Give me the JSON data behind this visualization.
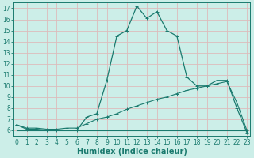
{
  "xlabel": "Humidex (Indice chaleur)",
  "background_color": "#cceee8",
  "grid_color": "#ddbbbb",
  "line_color": "#1a7a6e",
  "x_main": [
    0,
    1,
    2,
    3,
    4,
    5,
    6,
    7,
    8,
    9,
    10,
    11,
    12,
    13,
    14,
    15,
    16,
    17,
    18,
    19,
    20,
    21,
    22,
    23
  ],
  "y_main": [
    6.5,
    6.1,
    6.1,
    6.0,
    6.0,
    6.0,
    6.0,
    7.2,
    7.5,
    10.5,
    14.5,
    15.0,
    17.2,
    16.1,
    16.7,
    15.0,
    14.5,
    10.8,
    10.0,
    10.0,
    10.5,
    10.5,
    8.0,
    5.8
  ],
  "x_line2": [
    0,
    1,
    2,
    3,
    4,
    5,
    6,
    7,
    8,
    9,
    10,
    11,
    12,
    13,
    14,
    15,
    16,
    17,
    18,
    19,
    20,
    21,
    22,
    23
  ],
  "y_line2": [
    6.5,
    6.2,
    6.2,
    6.1,
    6.1,
    6.2,
    6.2,
    6.6,
    7.0,
    7.2,
    7.5,
    7.9,
    8.2,
    8.5,
    8.8,
    9.0,
    9.3,
    9.6,
    9.8,
    10.0,
    10.2,
    10.4,
    8.5,
    6.0
  ],
  "x_flat": [
    0,
    6,
    7,
    22,
    23
  ],
  "y_flat": [
    6.0,
    6.0,
    6.0,
    6.0,
    6.0
  ],
  "xlim": [
    -0.3,
    23.3
  ],
  "ylim": [
    5.5,
    17.5
  ],
  "yticks": [
    6,
    7,
    8,
    9,
    10,
    11,
    12,
    13,
    14,
    15,
    16,
    17
  ],
  "xticks": [
    0,
    1,
    2,
    3,
    4,
    5,
    6,
    7,
    8,
    9,
    10,
    11,
    12,
    13,
    14,
    15,
    16,
    17,
    18,
    19,
    20,
    21,
    22,
    23
  ],
  "tick_fontsize": 5.5,
  "xlabel_fontsize": 7,
  "marker": "+"
}
